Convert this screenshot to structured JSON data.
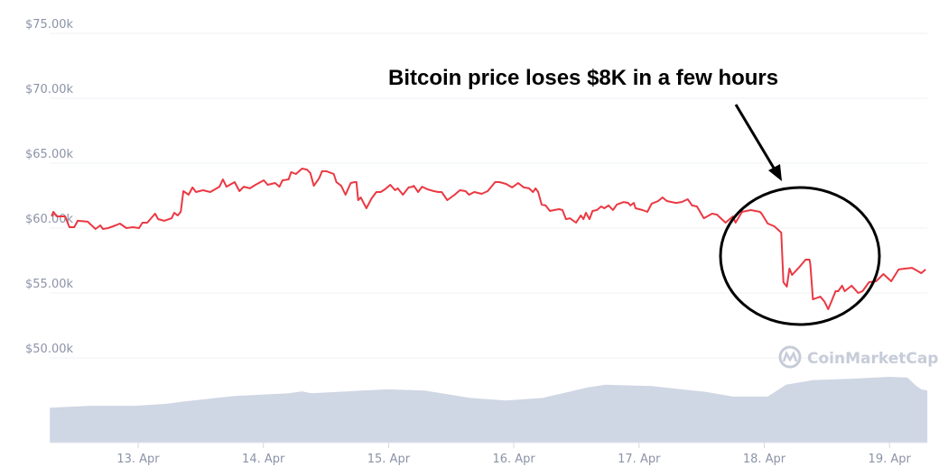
{
  "chart_data": {
    "type": "line",
    "title": "",
    "xlabel": "",
    "ylabel": "",
    "ylim": [
      47000,
      75000
    ],
    "grid": true,
    "y_ticks": [
      "$50.00k",
      "$55.00k",
      "$60.00k",
      "$65.00k",
      "$70.00k",
      "$75.00k"
    ],
    "y_tick_values": [
      50000,
      55000,
      60000,
      65000,
      70000,
      75000
    ],
    "x_ticks": [
      "13. Apr",
      "14. Apr",
      "15. Apr",
      "16. Apr",
      "17. Apr",
      "18. Apr",
      "19. Apr"
    ],
    "x_tick_values": [
      "Apr 13 00:00",
      "Apr 14 00:00",
      "Apr 15 00:00",
      "Apr 16 00:00",
      "Apr 17 00:00",
      "Apr 18 00:00",
      "Apr 19 00:00"
    ],
    "xlim": [
      "Apr 12 07:05",
      "Apr 19 07:15"
    ],
    "line_color": "#ea3943",
    "volume_color": "#cfd6e4",
    "series": [
      {
        "kind": "price",
        "points": [
          [
            "Apr 12 07:25",
            60900
          ],
          [
            "Apr 12 07:45",
            61250
          ],
          [
            "Apr 12 08:25",
            60900
          ],
          [
            "Apr 12 10:00",
            60900
          ],
          [
            "Apr 12 10:50",
            60070
          ],
          [
            "Apr 12 11:45",
            60070
          ],
          [
            "Apr 12 12:25",
            60560
          ],
          [
            "Apr 12 14:20",
            60490
          ],
          [
            "Apr 12 15:50",
            59930
          ],
          [
            "Apr 12 16:45",
            60210
          ],
          [
            "Apr 12 17:15",
            59930
          ],
          [
            "Apr 12 18:15",
            60000
          ],
          [
            "Apr 12 19:40",
            60210
          ],
          [
            "Apr 12 20:30",
            60350
          ],
          [
            "Apr 12 21:45",
            60000
          ],
          [
            "Apr 12 23:00",
            60070
          ],
          [
            "Apr 13 00:10",
            60000
          ],
          [
            "Apr 13 00:50",
            60420
          ],
          [
            "Apr 13 01:45",
            60420
          ],
          [
            "Apr 13 03:15",
            61110
          ],
          [
            "Apr 13 03:50",
            60690
          ],
          [
            "Apr 13 05:00",
            60560
          ],
          [
            "Apr 13 06:25",
            60760
          ],
          [
            "Apr 13 06:55",
            61180
          ],
          [
            "Apr 13 07:35",
            60970
          ],
          [
            "Apr 13 08:10",
            61250
          ],
          [
            "Apr 13 08:40",
            62850
          ],
          [
            "Apr 13 09:40",
            62570
          ],
          [
            "Apr 13 10:25",
            63130
          ],
          [
            "Apr 13 11:05",
            62780
          ],
          [
            "Apr 13 12:25",
            62920
          ],
          [
            "Apr 13 13:50",
            62780
          ],
          [
            "Apr 13 15:35",
            63190
          ],
          [
            "Apr 13 16:15",
            63750
          ],
          [
            "Apr 13 16:55",
            63190
          ],
          [
            "Apr 13 18:30",
            63540
          ],
          [
            "Apr 13 19:25",
            62850
          ],
          [
            "Apr 13 20:15",
            63190
          ],
          [
            "Apr 13 21:25",
            63060
          ],
          [
            "Apr 13 22:30",
            63330
          ],
          [
            "Apr 14 00:05",
            63680
          ],
          [
            "Apr 14 00:50",
            63330
          ],
          [
            "Apr 14 02:15",
            63470
          ],
          [
            "Apr 14 03:05",
            63190
          ],
          [
            "Apr 14 03:40",
            63680
          ],
          [
            "Apr 14 04:50",
            63750
          ],
          [
            "Apr 14 05:20",
            64310
          ],
          [
            "Apr 14 06:15",
            64170
          ],
          [
            "Apr 14 07:25",
            64580
          ],
          [
            "Apr 14 08:20",
            64510
          ],
          [
            "Apr 14 09:00",
            64240
          ],
          [
            "Apr 14 09:40",
            63260
          ],
          [
            "Apr 14 10:25",
            63680
          ],
          [
            "Apr 14 10:45",
            63890
          ],
          [
            "Apr 14 11:15",
            64380
          ],
          [
            "Apr 14 12:05",
            64380
          ],
          [
            "Apr 14 13:30",
            64170
          ],
          [
            "Apr 14 14:00",
            63540
          ],
          [
            "Apr 14 14:55",
            63260
          ],
          [
            "Apr 14 15:45",
            62570
          ],
          [
            "Apr 14 16:45",
            63470
          ],
          [
            "Apr 14 17:30",
            63540
          ],
          [
            "Apr 14 17:50",
            63540
          ],
          [
            "Apr 14 18:10",
            62150
          ],
          [
            "Apr 14 18:40",
            62360
          ],
          [
            "Apr 14 19:45",
            61530
          ],
          [
            "Apr 14 20:45",
            62290
          ],
          [
            "Apr 14 21:40",
            62780
          ],
          [
            "Apr 14 22:30",
            62780
          ],
          [
            "Apr 14 23:20",
            62990
          ],
          [
            "Apr 15 00:20",
            63330
          ],
          [
            "Apr 15 01:15",
            62920
          ],
          [
            "Apr 15 01:45",
            63060
          ],
          [
            "Apr 15 02:45",
            62570
          ],
          [
            "Apr 15 03:50",
            63130
          ],
          [
            "Apr 15 04:40",
            63190
          ],
          [
            "Apr 15 04:50",
            63260
          ],
          [
            "Apr 15 05:40",
            62780
          ],
          [
            "Apr 15 06:25",
            63190
          ],
          [
            "Apr 15 07:25",
            62990
          ],
          [
            "Apr 15 08:40",
            62850
          ],
          [
            "Apr 15 09:30",
            62780
          ],
          [
            "Apr 15 10:10",
            62780
          ],
          [
            "Apr 15 11:15",
            62150
          ],
          [
            "Apr 15 12:40",
            62570
          ],
          [
            "Apr 15 13:40",
            62920
          ],
          [
            "Apr 15 14:45",
            62850
          ],
          [
            "Apr 15 15:25",
            62570
          ],
          [
            "Apr 15 16:25",
            62780
          ],
          [
            "Apr 15 17:50",
            62640
          ],
          [
            "Apr 15 19:00",
            62850
          ],
          [
            "Apr 15 20:25",
            63540
          ],
          [
            "Apr 15 21:15",
            63540
          ],
          [
            "Apr 15 22:30",
            63400
          ],
          [
            "Apr 15 23:40",
            63130
          ],
          [
            "Apr 16 00:50",
            63470
          ],
          [
            "Apr 16 01:55",
            63130
          ],
          [
            "Apr 16 02:55",
            63060
          ],
          [
            "Apr 16 03:40",
            62780
          ],
          [
            "Apr 16 04:10",
            63060
          ],
          [
            "Apr 16 04:40",
            62780
          ],
          [
            "Apr 16 05:20",
            61810
          ],
          [
            "Apr 16 06:05",
            61740
          ],
          [
            "Apr 16 06:55",
            61320
          ],
          [
            "Apr 16 07:45",
            61390
          ],
          [
            "Apr 16 08:40",
            61460
          ],
          [
            "Apr 16 09:20",
            61390
          ],
          [
            "Apr 16 10:00",
            60690
          ],
          [
            "Apr 16 10:45",
            60760
          ],
          [
            "Apr 16 11:55",
            60420
          ],
          [
            "Apr 16 12:50",
            60970
          ],
          [
            "Apr 16 13:20",
            60690
          ],
          [
            "Apr 16 13:50",
            61180
          ],
          [
            "Apr 16 14:30",
            60690
          ],
          [
            "Apr 16 15:05",
            61320
          ],
          [
            "Apr 16 15:55",
            61390
          ],
          [
            "Apr 16 16:45",
            61670
          ],
          [
            "Apr 16 17:20",
            61530
          ],
          [
            "Apr 16 18:10",
            61740
          ],
          [
            "Apr 16 19:00",
            61390
          ],
          [
            "Apr 16 19:45",
            61810
          ],
          [
            "Apr 16 21:05",
            62010
          ],
          [
            "Apr 16 21:55",
            61940
          ],
          [
            "Apr 16 22:20",
            61740
          ],
          [
            "Apr 16 23:00",
            61940
          ],
          [
            "Apr 16 23:20",
            61530
          ],
          [
            "Apr 17 00:40",
            61390
          ],
          [
            "Apr 17 01:35",
            61250
          ],
          [
            "Apr 17 02:25",
            61880
          ],
          [
            "Apr 17 03:40",
            62080
          ],
          [
            "Apr 17 04:30",
            62360
          ],
          [
            "Apr 17 05:20",
            62080
          ],
          [
            "Apr 17 07:05",
            61940
          ],
          [
            "Apr 17 08:10",
            62010
          ],
          [
            "Apr 17 09:20",
            62220
          ],
          [
            "Apr 17 10:10",
            61740
          ],
          [
            "Apr 17 11:05",
            61670
          ],
          [
            "Apr 17 12:25",
            60760
          ],
          [
            "Apr 17 14:00",
            61110
          ],
          [
            "Apr 17 14:55",
            61040
          ],
          [
            "Apr 17 16:35",
            60420
          ],
          [
            "Apr 17 18:00",
            60900
          ],
          [
            "Apr 17 18:30",
            60420
          ],
          [
            "Apr 17 19:45",
            61250
          ],
          [
            "Apr 17 21:25",
            61390
          ],
          [
            "Apr 17 23:10",
            61250
          ],
          [
            "Apr 17 23:30",
            61110
          ],
          [
            "Apr 18 00:40",
            60350
          ],
          [
            "Apr 18 01:55",
            60140
          ],
          [
            "Apr 18 03:15",
            59650
          ],
          [
            "Apr 18 03:40",
            55830
          ],
          [
            "Apr 18 04:20",
            55490
          ],
          [
            "Apr 18 04:50",
            56880
          ],
          [
            "Apr 18 05:20",
            56390
          ],
          [
            "Apr 18 06:45",
            57010
          ],
          [
            "Apr 18 07:55",
            57570
          ],
          [
            "Apr 18 08:40",
            57570
          ],
          [
            "Apr 18 08:50",
            57220
          ],
          [
            "Apr 18 09:20",
            54510
          ],
          [
            "Apr 18 10:45",
            54720
          ],
          [
            "Apr 18 11:35",
            54310
          ],
          [
            "Apr 18 12:15",
            53750
          ],
          [
            "Apr 18 12:50",
            54310
          ],
          [
            "Apr 18 13:40",
            55140
          ],
          [
            "Apr 18 14:10",
            55140
          ],
          [
            "Apr 18 14:55",
            55560
          ],
          [
            "Apr 18 15:25",
            55140
          ],
          [
            "Apr 18 16:45",
            55560
          ],
          [
            "Apr 18 18:00",
            55000
          ],
          [
            "Apr 18 18:50",
            55140
          ],
          [
            "Apr 18 20:05",
            55830
          ],
          [
            "Apr 18 21:25",
            55900
          ],
          [
            "Apr 18 22:50",
            56460
          ],
          [
            "Apr 19 00:20",
            55900
          ],
          [
            "Apr 19 01:45",
            56810
          ],
          [
            "Apr 19 03:05",
            56880
          ],
          [
            "Apr 19 04:20",
            56940
          ],
          [
            "Apr 19 05:10",
            56740
          ],
          [
            "Apr 19 06:05",
            56530
          ],
          [
            "Apr 19 06:55",
            56810
          ]
        ]
      },
      {
        "kind": "volume",
        "relative": true,
        "points": [
          [
            "Apr 12 07:05",
            0.53
          ],
          [
            "Apr 12 14:50",
            0.56
          ],
          [
            "Apr 12 23:30",
            0.56
          ],
          [
            "Apr 13 05:30",
            0.59
          ],
          [
            "Apr 13 08:10",
            0.62
          ],
          [
            "Apr 13 18:30",
            0.71
          ],
          [
            "Apr 14 04:50",
            0.75
          ],
          [
            "Apr 14 07:25",
            0.78
          ],
          [
            "Apr 14 09:10",
            0.75
          ],
          [
            "Apr 14 18:40",
            0.79
          ],
          [
            "Apr 15 00:00",
            0.81
          ],
          [
            "Apr 15 06:55",
            0.79
          ],
          [
            "Apr 15 15:35",
            0.68
          ],
          [
            "Apr 15 22:30",
            0.64
          ],
          [
            "Apr 16 05:30",
            0.68
          ],
          [
            "Apr 16 14:10",
            0.84
          ],
          [
            "Apr 16 17:35",
            0.88
          ],
          [
            "Apr 17 02:25",
            0.86
          ],
          [
            "Apr 17 12:50",
            0.77
          ],
          [
            "Apr 17 18:00",
            0.7
          ],
          [
            "Apr 18 00:40",
            0.7
          ],
          [
            "Apr 18 04:10",
            0.88
          ],
          [
            "Apr 18 09:20",
            0.95
          ],
          [
            "Apr 18 16:10",
            0.97
          ],
          [
            "Apr 19 00:00",
            1.0
          ],
          [
            "Apr 19 03:25",
            0.99
          ],
          [
            "Apr 19 05:10",
            0.86
          ],
          [
            "Apr 19 06:05",
            0.81
          ],
          [
            "Apr 19 07:15",
            0.79
          ]
        ]
      }
    ],
    "annotation": {
      "text": "Bitcoin price loses $8K in a few hours",
      "highlight": "ellipse around Apr 18 drop",
      "arrow": true
    },
    "watermark": "CoinMarketCap"
  }
}
